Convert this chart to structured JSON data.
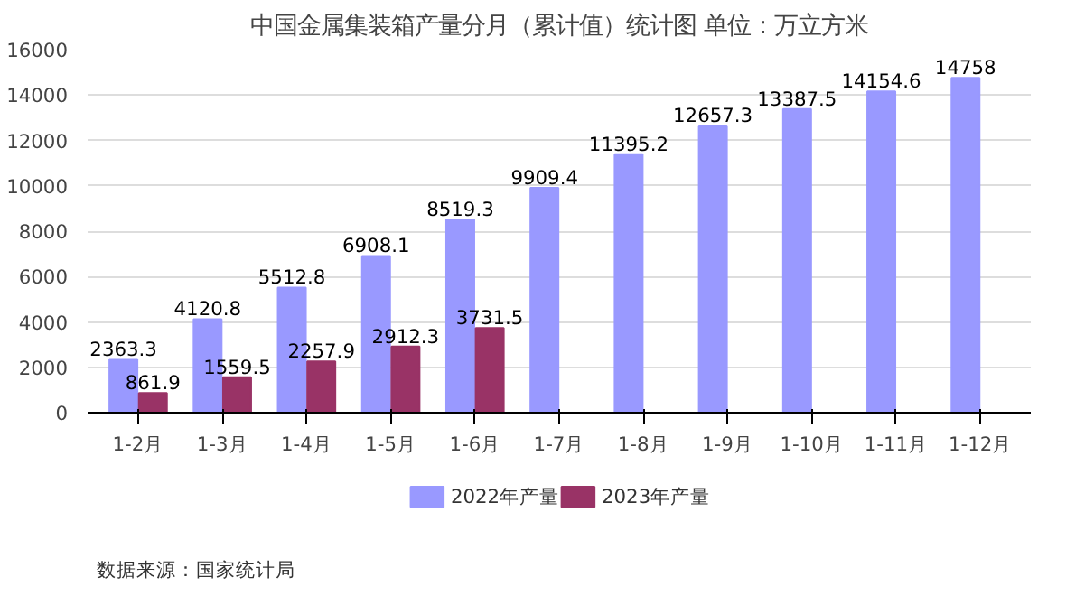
{
  "chart_data": {
    "type": "bar",
    "title": "中国金属集装箱产量分月（累计值）统计图 单位：万立方米",
    "categories": [
      "1-2月",
      "1-3月",
      "1-4月",
      "1-5月",
      "1-6月",
      "1-7月",
      "1-8月",
      "1-9月",
      "1-10月",
      "1-11月",
      "1-12月"
    ],
    "series": [
      {
        "name": "2022年产量",
        "color": "#9999ff",
        "values": [
          2363.3,
          4120.8,
          5512.8,
          6908.1,
          8519.3,
          9909.4,
          11395.2,
          12657.3,
          13387.5,
          14154.6,
          14758
        ]
      },
      {
        "name": "2023年产量",
        "color": "#993366",
        "values": [
          861.9,
          1559.5,
          2257.9,
          2912.3,
          3731.5,
          null,
          null,
          null,
          null,
          null,
          null
        ]
      }
    ],
    "ylim": [
      0,
      16000
    ],
    "yticks": [
      0,
      2000,
      4000,
      6000,
      8000,
      10000,
      12000,
      14000,
      16000
    ],
    "grid": "y",
    "legend": "bottom",
    "data_labels": true,
    "annotations": [
      "数据来源：国家统计局"
    ]
  }
}
